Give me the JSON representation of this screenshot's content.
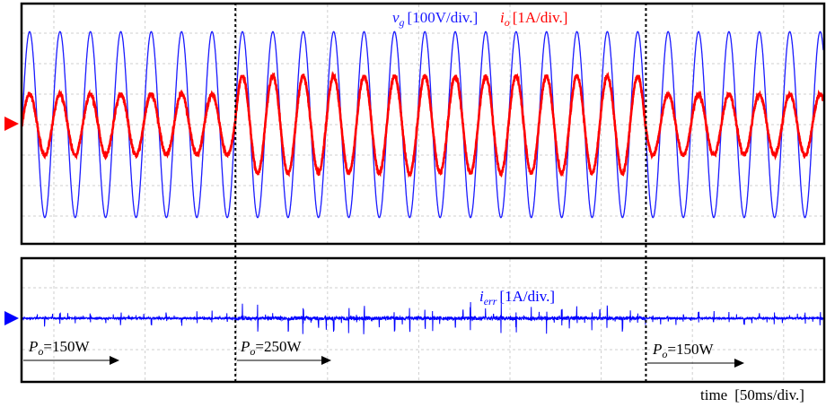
{
  "chart_data": {
    "type": "line",
    "title": "",
    "xlabel": "time",
    "x_scale_label": "[50ms/div.]",
    "x_units": "ms",
    "xlim": [
      0,
      440
    ],
    "events": [
      {
        "t": 117,
        "label_var": "P",
        "label_sub": "o",
        "label_val": "=150W",
        "start": 0
      },
      {
        "t": 117,
        "label_var": "P",
        "label_sub": "o",
        "label_val": "=250W",
        "start": 117
      },
      {
        "t": 342,
        "label_var": "P",
        "label_sub": "o",
        "label_val": "=150W",
        "start": 342
      }
    ],
    "segments": [
      {
        "t_start": 0,
        "t_end": 117,
        "power_W": 150,
        "io_peak_A": 1.0
      },
      {
        "t_start": 117,
        "t_end": 342,
        "power_W": 250,
        "io_peak_A": 1.6
      },
      {
        "t_start": 342,
        "t_end": 440,
        "power_W": 150,
        "io_peak_A": 1.0
      }
    ],
    "panels": [
      {
        "name": "top",
        "series": [
          {
            "name": "vg",
            "var": "v",
            "sub": "g",
            "scale": "[100V/div.]",
            "color": "#1a1aff",
            "type": "sine",
            "frequency_Hz": 60,
            "peak_V": 305,
            "div_units": 100
          },
          {
            "name": "io",
            "var": "i",
            "sub": "o",
            "scale": "[1A/div.]",
            "color": "#ff0000",
            "type": "sine",
            "frequency_Hz": 60,
            "div_units": 1
          }
        ]
      },
      {
        "name": "bottom",
        "series": [
          {
            "name": "ierr",
            "var": "i",
            "sub": "err",
            "scale": "[1A/div.]",
            "color": "#0000ff",
            "type": "noise",
            "div_units": 1,
            "rms_150W_A": 0.05,
            "rms_250W_A": 0.12
          }
        ]
      }
    ]
  }
}
